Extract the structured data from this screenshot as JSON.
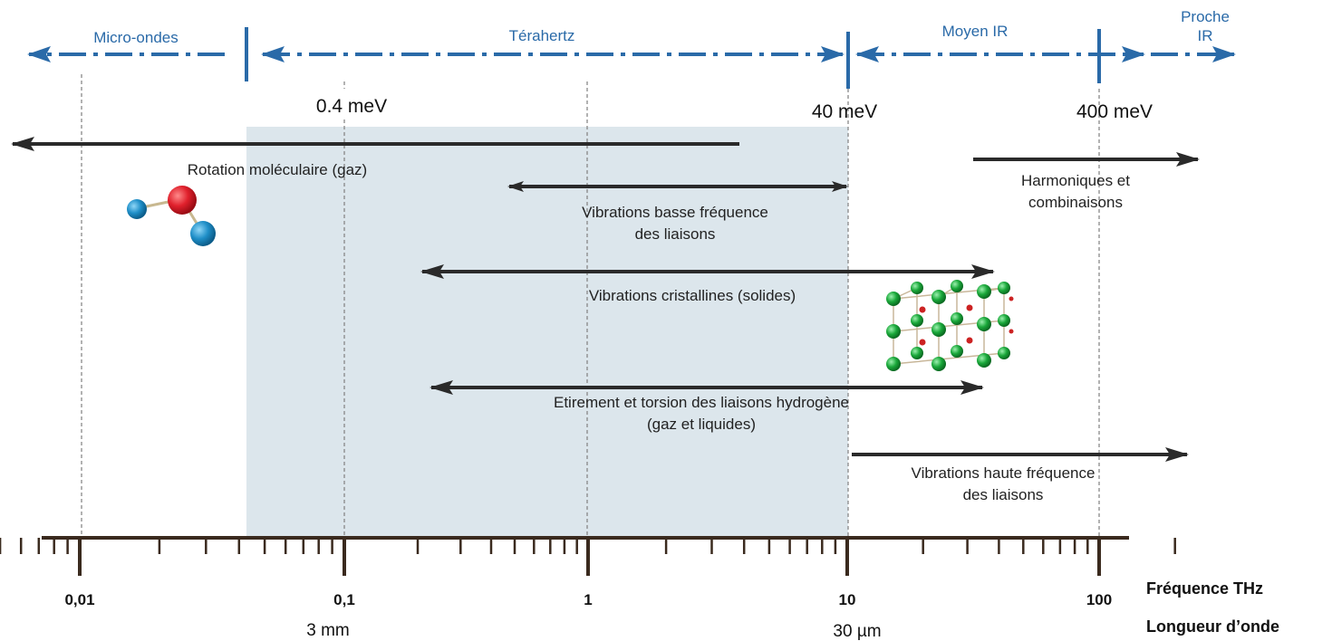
{
  "bands": {
    "microwaves": "Micro-ondes",
    "terahertz": "Térahertz",
    "mid_ir": "Moyen IR",
    "near_ir_line1": "Proche",
    "near_ir_line2": "IR"
  },
  "energies": [
    "0.4 meV",
    "40 meV",
    "400 meV"
  ],
  "processes": {
    "rotation": "Rotation moléculaire (gaz)",
    "harmonics_1": "Harmoniques et",
    "harmonics_2": "combinaisons",
    "low_freq_1": "Vibrations basse fréquence",
    "low_freq_2": "des liaisons",
    "crystal": "Vibrations cristallines (solides)",
    "hbond_1": "Etirement et torsion des liaisons hydrogène",
    "hbond_2": "(gaz et liquides)",
    "high_freq_1": "Vibrations haute fréquence",
    "high_freq_2": "des liaisons"
  },
  "axis": {
    "ticks": [
      "0,01",
      "0,1",
      "1",
      "10",
      "100"
    ],
    "wavelengths": [
      "3 mm",
      "30 µm"
    ],
    "frequency_label": "Fréquence THz",
    "wavelength_label": "Longueur d’onde"
  },
  "colors": {
    "band_blue": "#2a6aa8",
    "thz_shade": "#dce6ec",
    "arrow_dark": "#2a2a2a",
    "atom_red": "#e0202c",
    "atom_blue": "#1f8fc8",
    "crystal_green": "#1aa83a"
  }
}
